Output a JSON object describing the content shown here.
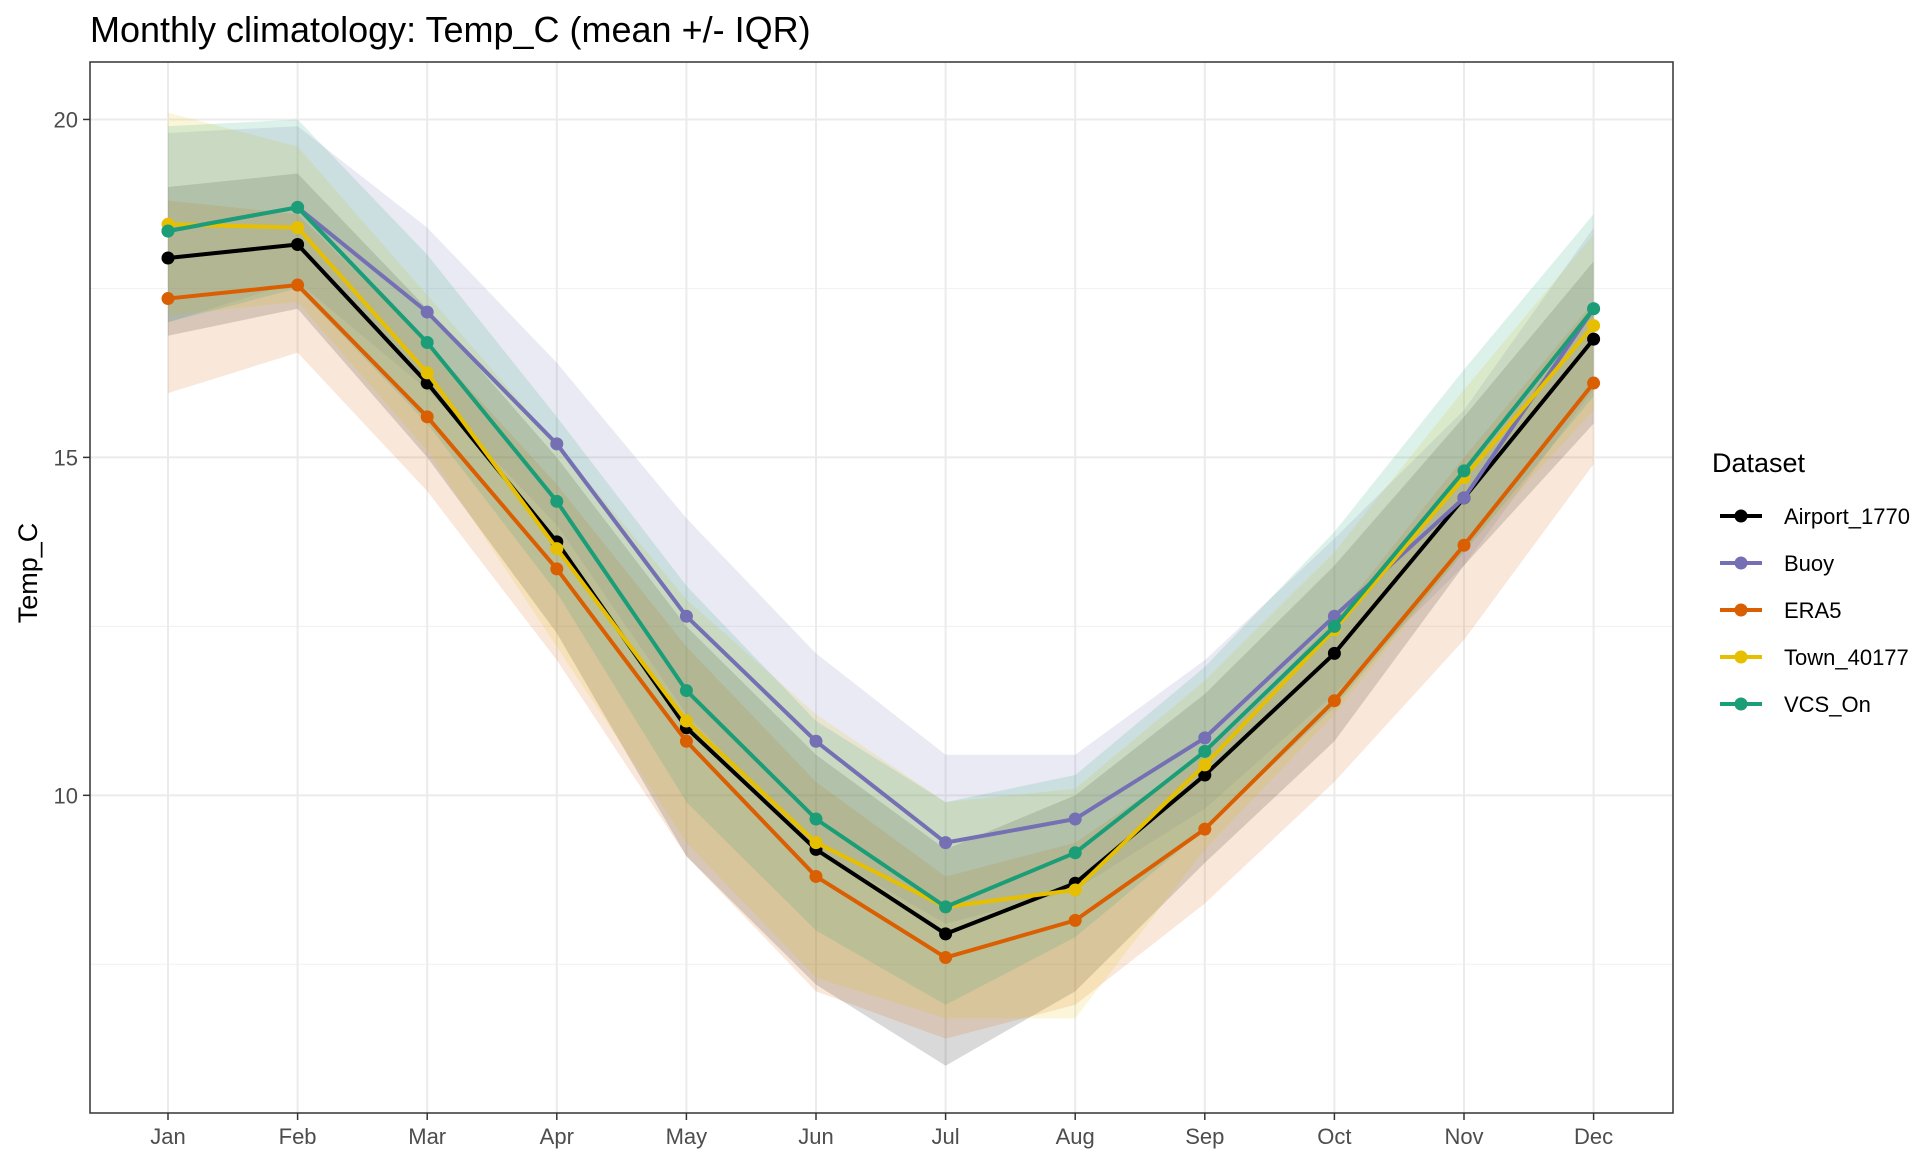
{
  "chart_data": {
    "type": "line",
    "title": "Monthly climatology: Temp_C (mean +/- IQR)",
    "xlabel": "",
    "ylabel": "Temp_C",
    "categories": [
      "Jan",
      "Feb",
      "Mar",
      "Apr",
      "May",
      "Jun",
      "Jul",
      "Aug",
      "Sep",
      "Oct",
      "Nov",
      "Dec"
    ],
    "ylim": [
      5.3,
      20.85
    ],
    "yticks": [
      10,
      15,
      20
    ],
    "grid": true,
    "legend": {
      "title": "Dataset",
      "position": "right"
    },
    "series": [
      {
        "name": "Airport_1770",
        "color": "#000000",
        "values": [
          17.95,
          18.15,
          16.1,
          13.75,
          11.0,
          9.2,
          7.95,
          8.7,
          10.3,
          12.1,
          14.4,
          16.75
        ],
        "lower": [
          16.8,
          17.2,
          15.0,
          12.4,
          9.1,
          7.2,
          6.0,
          7.1,
          9.0,
          10.8,
          13.4,
          15.5
        ],
        "upper": [
          19.0,
          19.2,
          17.2,
          15.0,
          12.5,
          10.6,
          9.2,
          10.0,
          11.5,
          13.4,
          15.6,
          17.9
        ]
      },
      {
        "name": "Buoy",
        "color": "#7570b3",
        "values": [
          18.35,
          18.7,
          17.15,
          15.2,
          12.65,
          10.8,
          9.3,
          9.65,
          10.85,
          12.65,
          14.4,
          17.2
        ],
        "lower": [
          17.0,
          17.6,
          16.0,
          14.0,
          11.2,
          9.2,
          8.1,
          8.6,
          9.8,
          11.5,
          13.4,
          16.0
        ],
        "upper": [
          19.8,
          19.9,
          18.4,
          16.4,
          14.1,
          12.1,
          10.6,
          10.6,
          12.0,
          13.8,
          15.7,
          18.4
        ]
      },
      {
        "name": "ERA5",
        "color": "#d95f02",
        "values": [
          17.35,
          17.55,
          15.6,
          13.35,
          10.8,
          8.8,
          7.6,
          8.15,
          9.5,
          11.4,
          13.7,
          16.1
        ],
        "lower": [
          15.95,
          16.55,
          14.5,
          12.0,
          9.1,
          7.1,
          6.4,
          6.9,
          8.4,
          10.2,
          12.3,
          14.9
        ],
        "upper": [
          18.8,
          18.6,
          16.7,
          14.6,
          12.2,
          10.2,
          8.8,
          9.3,
          10.6,
          12.6,
          15.0,
          17.3
        ]
      },
      {
        "name": "Town_40177",
        "color": "#e6c000",
        "values": [
          18.45,
          18.4,
          16.25,
          13.65,
          11.1,
          9.3,
          8.35,
          8.6,
          10.45,
          12.45,
          14.7,
          16.95
        ],
        "lower": [
          17.1,
          17.3,
          15.1,
          12.2,
          9.3,
          7.3,
          6.7,
          6.7,
          9.2,
          11.2,
          13.6,
          15.7
        ],
        "upper": [
          20.1,
          19.6,
          17.4,
          15.2,
          12.9,
          11.2,
          9.9,
          10.1,
          11.7,
          13.6,
          16.0,
          18.3
        ]
      },
      {
        "name": "VCS_On",
        "color": "#1b9e77",
        "values": [
          18.35,
          18.7,
          16.7,
          14.35,
          11.55,
          9.65,
          8.35,
          9.15,
          10.65,
          12.5,
          14.8,
          17.2
        ],
        "lower": [
          17.0,
          17.5,
          15.5,
          13.0,
          9.9,
          8.0,
          6.9,
          7.9,
          9.5,
          11.3,
          13.6,
          15.9
        ],
        "upper": [
          19.9,
          20.0,
          18.0,
          15.6,
          13.1,
          11.1,
          9.9,
          10.3,
          11.9,
          13.9,
          16.3,
          18.6
        ]
      }
    ]
  }
}
